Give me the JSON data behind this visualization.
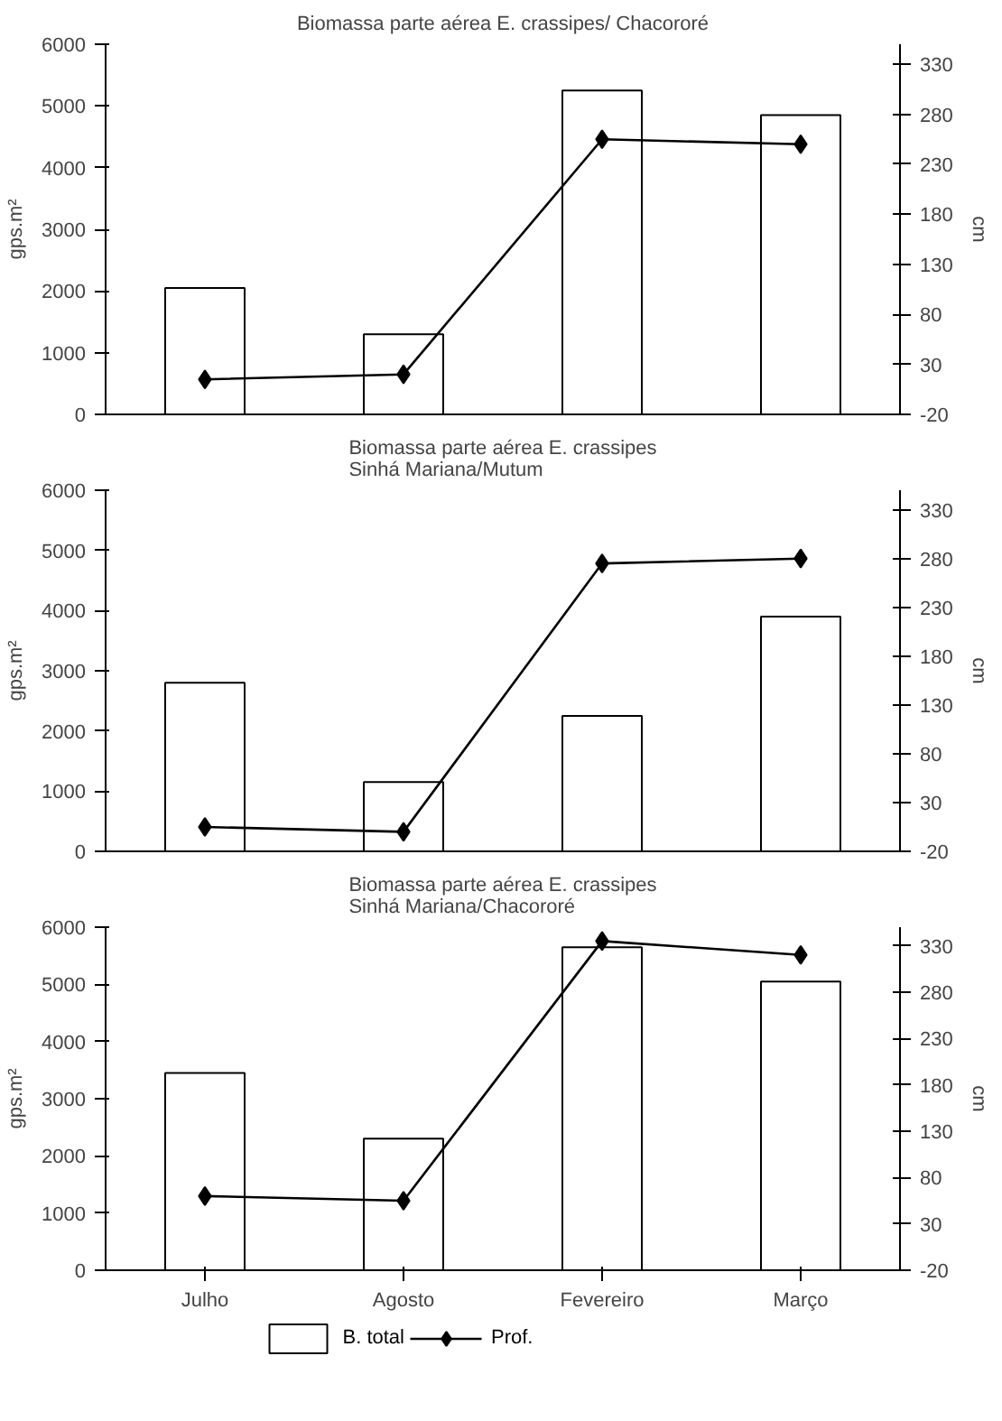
{
  "chart_data": [
    {
      "type": "bar",
      "title": "Biomassa parte aérea E. crassipes/ Chacororé",
      "ylabel": "gps.m²",
      "y2label": "cm",
      "ylim": [
        0,
        6000
      ],
      "yticks": [
        0,
        1000,
        2000,
        3000,
        4000,
        5000,
        6000
      ],
      "y2lim": [
        -20,
        350
      ],
      "y2ticks": [
        -20,
        30,
        80,
        130,
        180,
        230,
        280,
        330
      ],
      "tick_labels": "y",
      "grid": false,
      "series": [
        {
          "color": "#ffffff",
          "values": [
            2050,
            1300,
            5250,
            4850
          ]
        },
        {
          "type": "line",
          "axis": "y2",
          "color": "#000000",
          "marker": "diamond",
          "line_style": "solid",
          "values": [
            15,
            20,
            255,
            250
          ]
        }
      ]
    },
    {
      "type": "bar",
      "title": "Biomassa parte aérea E. crassipes\nSinhá Mariana/Mutum",
      "ylabel": "gps.m²",
      "y2label": "cm",
      "ylim": [
        0,
        6000
      ],
      "yticks": [
        0,
        1000,
        2000,
        3000,
        4000,
        5000,
        6000
      ],
      "y2lim": [
        -20,
        350
      ],
      "y2ticks": [
        -20,
        30,
        80,
        130,
        180,
        230,
        280,
        330
      ],
      "tick_labels": "y",
      "grid": false,
      "series": [
        {
          "color": "#ffffff",
          "values": [
            2800,
            1150,
            2250,
            3900
          ]
        },
        {
          "type": "line",
          "axis": "y2",
          "color": "#000000",
          "marker": "diamond",
          "line_style": "solid",
          "values": [
            5,
            0,
            275,
            280
          ]
        }
      ]
    },
    {
      "type": "bar",
      "title": "Biomassa parte aérea E. crassipes\nSinhá Mariana/Chacororé",
      "ylabel": "gps.m²",
      "y2label": "cm",
      "categories": [
        "Julho",
        "Agosto",
        "Fevereiro",
        "Março"
      ],
      "ylim": [
        0,
        6000
      ],
      "yticks": [
        0,
        1000,
        2000,
        3000,
        4000,
        5000,
        6000
      ],
      "y2lim": [
        -20,
        350
      ],
      "y2ticks": [
        -20,
        30,
        80,
        130,
        180,
        230,
        280,
        330
      ],
      "grid": false,
      "legend": "bottom",
      "series": [
        {
          "name": "B. total",
          "color": "#ffffff",
          "values": [
            3450,
            2300,
            5650,
            5050
          ]
        },
        {
          "name": "Prof.",
          "type": "line",
          "axis": "y2",
          "color": "#000000",
          "marker": "diamond",
          "line_style": "solid",
          "values": [
            60,
            55,
            335,
            320
          ]
        }
      ]
    }
  ]
}
